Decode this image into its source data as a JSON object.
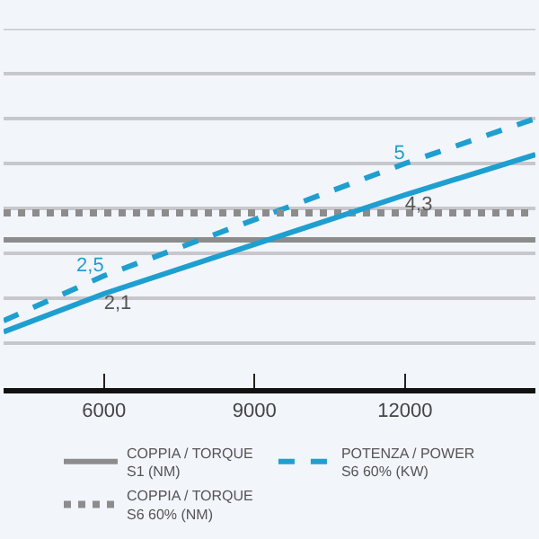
{
  "chart_data": {
    "type": "line",
    "x": [
      4000,
      6000,
      12000,
      14600
    ],
    "xlim": [
      4000,
      14600
    ],
    "xticks": [
      6000,
      9000,
      12000
    ],
    "ylim": [
      0,
      8
    ],
    "yticks": [
      {
        "value": 0,
        "label": null
      },
      {
        "value": 1,
        "label": null
      },
      {
        "value": 2,
        "label": null
      },
      {
        "value": 3,
        "label": null
      },
      {
        "value": 4,
        "label": null
      },
      {
        "value": 5,
        "label": null
      },
      {
        "value": 6,
        "label": null
      },
      {
        "value": 7,
        "label": null
      },
      {
        "value": 8,
        "label": null
      }
    ],
    "tick_labels": "x",
    "grid": "y",
    "legend": "bottom",
    "series": [
      {
        "name": "COPPIA / TORQUE\nS1 (NM)",
        "color": "#8c8c8c",
        "line_style": "solid",
        "values": [
          3.3,
          3.3,
          3.3,
          3.3
        ]
      },
      {
        "name": "POTENZA / POWER\nS6 60% (KW)",
        "color": "#1e9fd0",
        "line_style": "dashed",
        "values": [
          1.5,
          2.5,
          5,
          6.0
        ],
        "value_labels": [
          null,
          "2,5",
          "5",
          null
        ]
      },
      {
        "name": "COPPIA / TORQUE\nS6 60% (NM)",
        "color": "#8c8c8c",
        "line_style": "dotted",
        "values": [
          3.9,
          3.9,
          3.9,
          3.9
        ]
      },
      {
        "color": "#1e9fd0",
        "line_style": "solid",
        "values": [
          1.25,
          2.1,
          4.3,
          5.2
        ],
        "value_labels": [
          null,
          "2,1",
          "4,3",
          null
        ]
      }
    ]
  }
}
